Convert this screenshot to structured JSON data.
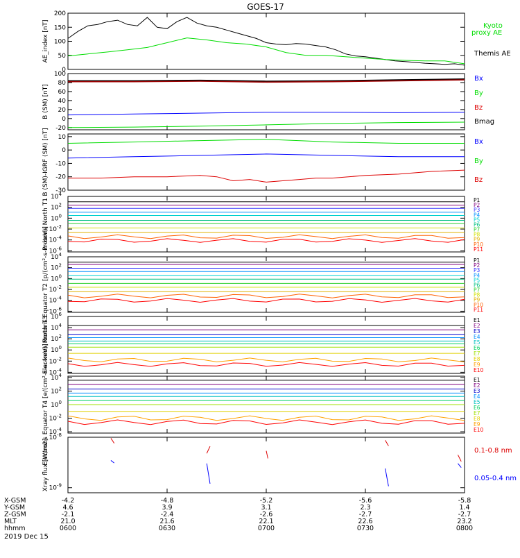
{
  "title": "GOES-17",
  "date_label": "2019 Dec 15",
  "colors": {
    "black": "#000000",
    "green": "#00dd00",
    "blue": "#0000ff",
    "red": "#dd0000",
    "darkred": "#a00000",
    "p": [
      "#000000",
      "#800080",
      "#3030ff",
      "#0090ff",
      "#00d0d0",
      "#00c080",
      "#30d030",
      "#d0e000",
      "#e0b000",
      "#ff6000",
      "#ff0000"
    ],
    "e": [
      "#000000",
      "#800080",
      "#0000cc",
      "#0090ff",
      "#00c0c0",
      "#00d060",
      "#a0e000",
      "#e0d000",
      "#ffa000",
      "#ff0000",
      "#cc0000"
    ]
  },
  "chart_data": [
    {
      "type": "line",
      "id": "ae",
      "ylabel": "AE_index [nT]",
      "ylim": [
        0,
        200
      ],
      "yticks": [
        "200",
        "150",
        "100",
        "50",
        "0"
      ],
      "yticks_values": [
        200,
        150,
        100,
        50,
        0
      ],
      "xlim": [
        0,
        120
      ],
      "legend": [
        "Kyoto",
        "proxy AE",
        "Themis AE"
      ],
      "series": [
        {
          "name": "Themis AE",
          "color": "#000000",
          "x": [
            0,
            3,
            6,
            9,
            12,
            15,
            18,
            21,
            24,
            27,
            30,
            33,
            36,
            39,
            42,
            45,
            48,
            51,
            54,
            57,
            60,
            63,
            66,
            69,
            72,
            75,
            78,
            81,
            84,
            87,
            90,
            93,
            96,
            99,
            102,
            105,
            108,
            111,
            114,
            117,
            120
          ],
          "y": [
            110,
            135,
            155,
            160,
            170,
            175,
            160,
            155,
            185,
            150,
            145,
            170,
            185,
            165,
            155,
            150,
            140,
            130,
            120,
            110,
            95,
            90,
            88,
            92,
            90,
            85,
            80,
            70,
            55,
            48,
            45,
            40,
            35,
            30,
            28,
            25,
            22,
            20,
            18,
            20,
            15
          ]
        },
        {
          "name": "Kyoto",
          "color": "#00dd00",
          "x": [
            0,
            6,
            12,
            18,
            24,
            30,
            36,
            42,
            48,
            54,
            60,
            66,
            72,
            78,
            84,
            90,
            96,
            102,
            108,
            114,
            120
          ],
          "y": [
            48,
            55,
            62,
            70,
            78,
            95,
            112,
            105,
            95,
            90,
            80,
            60,
            50,
            50,
            45,
            40,
            35,
            32,
            30,
            30,
            20
          ]
        }
      ]
    },
    {
      "type": "line",
      "id": "bsm",
      "ylabel": "B (SM) [nT]",
      "ylim": [
        -25,
        100
      ],
      "yticks": [
        "100",
        "80",
        "60",
        "40",
        "20",
        "0",
        "-20"
      ],
      "yticks_values": [
        100,
        80,
        60,
        40,
        20,
        0,
        -20
      ],
      "xlim": [
        0,
        120
      ],
      "legend": [
        "Bx",
        "By",
        "Bz",
        "Bmag"
      ],
      "series": [
        {
          "name": "Bmag",
          "color": "#000000",
          "x": [
            0,
            20,
            40,
            60,
            80,
            100,
            120
          ],
          "y": [
            84,
            84,
            85,
            83,
            84,
            86,
            88
          ]
        },
        {
          "name": "Bz",
          "color": "#a00000",
          "x": [
            0,
            20,
            40,
            60,
            80,
            100,
            120
          ],
          "y": [
            82,
            82,
            83,
            81,
            82,
            84,
            86
          ]
        },
        {
          "name": "Bx",
          "color": "#0000ff",
          "x": [
            0,
            20,
            40,
            60,
            80,
            100,
            120
          ],
          "y": [
            8,
            10,
            12,
            14,
            14,
            13,
            14
          ]
        },
        {
          "name": "By",
          "color": "#00dd00",
          "x": [
            0,
            20,
            40,
            60,
            80,
            100,
            120
          ],
          "y": [
            -20,
            -19,
            -17,
            -14,
            -11,
            -9,
            -8
          ]
        }
      ]
    },
    {
      "type": "line",
      "id": "bigrf",
      "ylabel": "B (SM)-IGRF (SM) [nT]",
      "ylim": [
        -30,
        12
      ],
      "yticks": [
        "10",
        "0",
        "-10",
        "-20",
        "-30"
      ],
      "yticks_values": [
        10,
        0,
        -10,
        -20,
        -30
      ],
      "xlim": [
        0,
        120
      ],
      "legend": [
        "Bx",
        "By",
        "Bz"
      ],
      "series": [
        {
          "name": "Bx",
          "color": "#00dd00",
          "x": [
            0,
            20,
            40,
            60,
            80,
            100,
            120
          ],
          "y": [
            5,
            6,
            7,
            8,
            6,
            5,
            5
          ]
        },
        {
          "name": "By",
          "color": "#0000ff",
          "x": [
            0,
            20,
            40,
            60,
            80,
            100,
            120
          ],
          "y": [
            -6,
            -5,
            -4,
            -3,
            -4,
            -5,
            -5
          ]
        },
        {
          "name": "Bz",
          "color": "#dd0000",
          "x": [
            0,
            10,
            20,
            30,
            40,
            45,
            50,
            55,
            60,
            65,
            70,
            75,
            80,
            90,
            100,
            110,
            120
          ],
          "y": [
            -21,
            -21,
            -20,
            -20,
            -19,
            -20,
            -23,
            -22,
            -24,
            -23,
            -22,
            -21,
            -21,
            -19,
            -18,
            -16,
            -15
          ]
        }
      ]
    },
    {
      "type": "line",
      "id": "p1",
      "ylabel": "Protons North T1",
      "ylim": [
        -6.2,
        4
      ],
      "yticks": [
        "10^4",
        "10^2",
        "10^0",
        "10^-2",
        "10^-4",
        "10^-6"
      ],
      "yticks_values": [
        4,
        2,
        0,
        -2,
        -4,
        -6
      ],
      "xlim": [
        0,
        120
      ],
      "legend": [
        "P1",
        "P2",
        "P3",
        "P4",
        "P5",
        "P6",
        "P7",
        "P8",
        "P9",
        "P10",
        "P11"
      ],
      "levels": [
        3.0,
        2.4,
        1.8,
        1.1,
        0.5,
        -0.4,
        -1.0,
        -1.8,
        -2.6,
        -3.4,
        -4.1
      ]
    },
    {
      "type": "line",
      "id": "p2",
      "ylabel": "Protons Equator T2 [p/(cm²-s-sr-keV)]",
      "ylim": [
        -6.2,
        4
      ],
      "yticks": [
        "10^4",
        "10^2",
        "10^0",
        "10^-2",
        "10^-4",
        "10^-6"
      ],
      "yticks_values": [
        4,
        2,
        0,
        -2,
        -4,
        -6
      ],
      "xlim": [
        0,
        120
      ],
      "legend": [
        "P1",
        "P2",
        "P3",
        "P4",
        "P5",
        "P6",
        "P7",
        "P8",
        "P9",
        "P10",
        "P11"
      ],
      "levels": [
        3.0,
        2.6,
        1.9,
        1.3,
        0.6,
        -0.1,
        -0.9,
        -1.6,
        -2.4,
        -3.2,
        -4.0
      ]
    },
    {
      "type": "line",
      "id": "e3",
      "ylabel": "Electrons North T3",
      "ylim": [
        -4.2,
        6
      ],
      "yticks": [
        "10^6",
        "10^4",
        "10^2",
        "10^0",
        "10^-2",
        "10^-4"
      ],
      "yticks_values": [
        6,
        4,
        2,
        0,
        -2,
        -4
      ],
      "xlim": [
        0,
        120
      ],
      "legend": [
        "E1",
        "E2",
        "E3",
        "E4",
        "E5",
        "E6",
        "E7",
        "E8",
        "E9",
        "E10"
      ],
      "levels": [
        4.4,
        3.6,
        2.8,
        2.2,
        1.6,
        1.1,
        0.5,
        -0.6,
        -1.8,
        -2.6
      ]
    },
    {
      "type": "line",
      "id": "e4",
      "ylabel": "Electrons Equator T4 [e/(cm²-s-sr-keV)]",
      "ylim": [
        -4.2,
        4.2
      ],
      "yticks": [
        "10^4",
        "10^2",
        "10^0",
        "10^-2",
        "10^-4"
      ],
      "yticks_values": [
        4,
        2,
        0,
        -2,
        -4
      ],
      "xlim": [
        0,
        120
      ],
      "legend": [
        "E1",
        "E2",
        "E3",
        "E4",
        "E5",
        "E6",
        "E7",
        "E8",
        "E9",
        "E10"
      ],
      "levels": [
        3.6,
        3.0,
        2.3,
        1.7,
        1.2,
        0.6,
        0.0,
        -1.0,
        -2.0,
        -2.6
      ]
    },
    {
      "type": "line",
      "id": "xray",
      "ylabel": "Xray flux [W/m2]",
      "ylim": [
        -9.1,
        -8
      ],
      "yticks": [
        "10^-8",
        "10^-9"
      ],
      "yticks_values": [
        -8,
        -9
      ],
      "xlim": [
        0,
        120
      ],
      "legend": [
        "0.1-0.8 nm",
        "0.05-0.4 nm"
      ],
      "segments": [
        {
          "color": "#dd0000",
          "x": [
            13,
            14
          ],
          "y": [
            -8.02,
            -8.12
          ]
        },
        {
          "color": "#0000ff",
          "x": [
            13,
            14
          ],
          "y": [
            -8.46,
            -8.51
          ]
        },
        {
          "color": "#dd0000",
          "x": [
            42,
            43
          ],
          "y": [
            -8.32,
            -8.18
          ]
        },
        {
          "color": "#0000ff",
          "x": [
            42,
            43
          ],
          "y": [
            -8.52,
            -8.92
          ]
        },
        {
          "color": "#dd0000",
          "x": [
            60,
            60.5
          ],
          "y": [
            -8.27,
            -8.42
          ]
        },
        {
          "color": "#dd0000",
          "x": [
            96,
            97
          ],
          "y": [
            -8.06,
            -8.17
          ]
        },
        {
          "color": "#0000ff",
          "x": [
            96,
            97
          ],
          "y": [
            -8.62,
            -8.97
          ]
        },
        {
          "color": "#dd0000",
          "x": [
            118,
            119
          ],
          "y": [
            -8.35,
            -8.48
          ]
        },
        {
          "color": "#0000ff",
          "x": [
            118,
            119
          ],
          "y": [
            -8.52,
            -8.6
          ]
        }
      ]
    }
  ],
  "x_axis": {
    "tick_positions": [
      0,
      30,
      60,
      90,
      120
    ],
    "row_labels": [
      "X-GSM",
      "Y-GSM",
      "Z-GSM",
      "MLT",
      "hhmm"
    ],
    "rows": [
      [
        "-4.2",
        "-4.8",
        "-5.2",
        "-5.6",
        "-5.8"
      ],
      [
        "4.6",
        "3.9",
        "3.1",
        "2.3",
        "1.4"
      ],
      [
        "-2.1",
        "-2.4",
        "-2.6",
        "-2.7",
        "-2.7"
      ],
      [
        "21.0",
        "21.6",
        "22.1",
        "22.6",
        "23.2"
      ],
      [
        "0600",
        "0630",
        "0700",
        "0730",
        "0800"
      ]
    ]
  }
}
